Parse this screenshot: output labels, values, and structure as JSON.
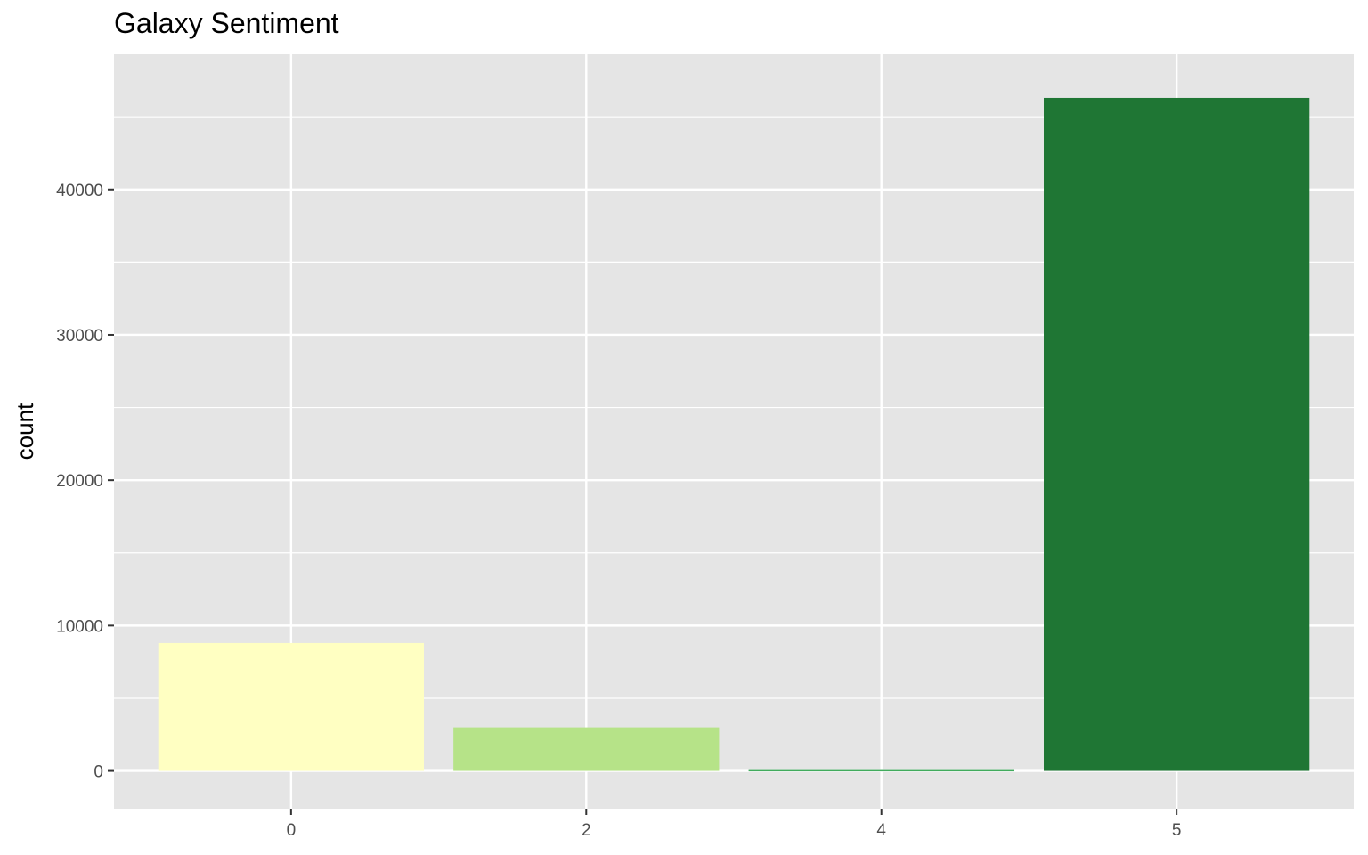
{
  "chart_data": {
    "type": "bar",
    "title": "Galaxy Sentiment",
    "xlabel": "",
    "ylabel": "count",
    "categories": [
      "0",
      "2",
      "4",
      "5"
    ],
    "values": [
      8800,
      3000,
      60,
      46300
    ],
    "colors": [
      "#ffffc2",
      "#b6e388",
      "#41ab5d",
      "#1f7634"
    ],
    "ylim": [
      -2600,
      49300
    ],
    "yticks": [
      0,
      10000,
      20000,
      30000,
      40000
    ],
    "ytick_labels": [
      "0",
      "10000",
      "20000",
      "30000",
      "40000"
    ],
    "grid": true,
    "panel_background": "#e5e5e5",
    "grid_color": "#ffffff",
    "legend": "none"
  }
}
